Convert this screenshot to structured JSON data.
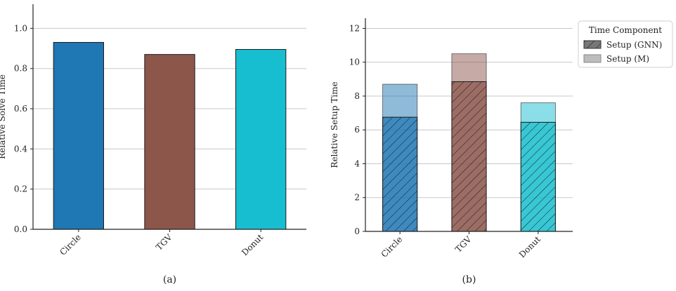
{
  "chart_data": [
    {
      "type": "bar",
      "caption": "(a)",
      "ylabel": "Relative Solve Time",
      "xlabel": "",
      "categories": [
        "Circle",
        "TGV",
        "Donut"
      ],
      "values": [
        0.93,
        0.87,
        0.895
      ],
      "colors": [
        "#1f77b4",
        "#8c564b",
        "#17becf"
      ],
      "ylim": [
        0,
        1.12
      ],
      "yticks": [
        "0.0",
        "0.2",
        "0.4",
        "0.6",
        "0.8",
        "1.0"
      ],
      "grid": "horizontal"
    },
    {
      "type": "bar",
      "stacked": false,
      "caption": "(b)",
      "ylabel": "Relative Setup Time",
      "xlabel": "",
      "categories": [
        "Circle",
        "TGV",
        "Donut"
      ],
      "colors": [
        "#1f77b4",
        "#8c564b",
        "#17becf"
      ],
      "series": [
        {
          "name": "Setup (GNN)",
          "values": [
            6.75,
            8.85,
            6.45
          ],
          "hatch": true
        },
        {
          "name": "Setup (M)",
          "values": [
            8.7,
            10.5,
            7.6
          ],
          "hatch": false
        }
      ],
      "ylim": [
        0,
        12.6
      ],
      "yticks": [
        "0",
        "2",
        "4",
        "6",
        "8",
        "10",
        "12"
      ],
      "grid": "horizontal",
      "legend": {
        "title": "Time Component",
        "placement": "outside-top-right"
      }
    }
  ]
}
